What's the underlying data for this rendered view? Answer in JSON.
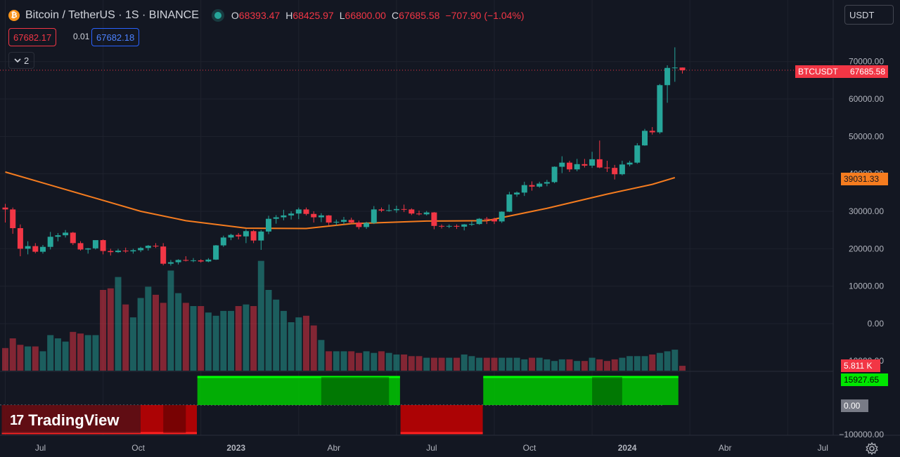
{
  "header": {
    "logo_glyph": "₿",
    "symbol_title": "Bitcoin / TetherUS · 1S · BINANCE",
    "ohlc": [
      {
        "key": "O",
        "value": "68393.47"
      },
      {
        "key": "H",
        "value": "68425.97"
      },
      {
        "key": "L",
        "value": "66800.00"
      },
      {
        "key": "C",
        "value": "67685.58"
      }
    ],
    "change": "−707.90 (−1.04%)",
    "market_status_color": "#26a69a"
  },
  "trade": {
    "sell_price": "67682.17",
    "spread": "0.01",
    "buy_price": "67682.18"
  },
  "indicators_collapse": {
    "icon": "chevron-down-icon",
    "count": "2"
  },
  "currency_select": {
    "value": "USDT"
  },
  "price_scale": {
    "ticks": [
      "70000.00",
      "60000.00",
      "50000.00",
      "40000.00",
      "30000.00",
      "20000.00",
      "10000.00",
      "0.00",
      "−10000.00",
      "−100000.00"
    ],
    "symbol_label": "BTCUSDT",
    "last_price": "67685.58",
    "ma_value": "39031.33",
    "volume_value": "5.811 K",
    "oscillator_value": "15927.65",
    "zero_value": "0.00"
  },
  "time_axis": {
    "labels": [
      {
        "text": "Jul",
        "week": 0,
        "bold": false
      },
      {
        "text": "Oct",
        "week": 13,
        "bold": false
      },
      {
        "text": "2023",
        "week": 26,
        "bold": true
      },
      {
        "text": "Abr",
        "week": 39,
        "bold": false
      },
      {
        "text": "Jul",
        "week": 52,
        "bold": false
      },
      {
        "text": "Oct",
        "week": 65,
        "bold": false
      },
      {
        "text": "2024",
        "week": 78,
        "bold": true
      },
      {
        "text": "Abr",
        "week": 91,
        "bold": false
      },
      {
        "text": "Jul",
        "week": 104,
        "bold": false
      }
    ]
  },
  "brand": {
    "name": "TradingView",
    "mark": "17"
  },
  "colors": {
    "up": "#26a69a",
    "down": "#f23645",
    "ma": "#f57c1f",
    "osc_up": "#00c800",
    "osc_down": "#c80000",
    "background": "#131722"
  },
  "chart_data": {
    "type": "candlestick",
    "interval": "1 week",
    "y_range": [
      -100000,
      75000
    ],
    "candles": [
      [
        null,
        31000,
        32000,
        27000,
        30500
      ],
      [
        null,
        30500,
        31000,
        24000,
        25500
      ],
      [
        null,
        25500,
        26500,
        18000,
        20000
      ],
      [
        null,
        20000,
        22000,
        18500,
        20700
      ],
      [
        null,
        20700,
        21500,
        18800,
        19200
      ],
      [
        null,
        19200,
        21000,
        18700,
        20500
      ],
      [
        null,
        20500,
        24500,
        19800,
        23200
      ],
      [
        null,
        23200,
        24200,
        22000,
        23600
      ],
      [
        null,
        23600,
        25000,
        23000,
        24300
      ],
      [
        null,
        24300,
        24500,
        21000,
        21500
      ],
      [
        null,
        21500,
        22000,
        19500,
        19800
      ],
      [
        null,
        19800,
        20200,
        18700,
        20100
      ],
      [
        null,
        20100,
        21000,
        19800,
        22300
      ],
      [
        null,
        22300,
        22500,
        18500,
        19400
      ],
      [
        null,
        19400,
        20000,
        18200,
        19100
      ],
      [
        null,
        19100,
        20000,
        18900,
        19500
      ],
      [
        null,
        19500,
        20300,
        18900,
        19300
      ],
      [
        null,
        19300,
        20000,
        18700,
        19600
      ],
      [
        null,
        19600,
        20500,
        19100,
        20200
      ],
      [
        null,
        20200,
        21000,
        19500,
        20800
      ],
      [
        null,
        20800,
        21500,
        20200,
        20600
      ],
      [
        null,
        20600,
        21500,
        15600,
        16000
      ],
      [
        null,
        16000,
        17000,
        15500,
        16400
      ],
      [
        null,
        16400,
        17200,
        15800,
        17000
      ],
      [
        null,
        17000,
        18000,
        16600,
        16800
      ],
      [
        null,
        16800,
        17500,
        16400,
        16900
      ],
      [
        null,
        16900,
        17200,
        16300,
        16600
      ],
      [
        null,
        16600,
        17500,
        16400,
        17100
      ],
      [
        null,
        17100,
        21000,
        17000,
        20900
      ],
      [
        null,
        20900,
        23500,
        20500,
        23000
      ],
      [
        null,
        23000,
        24000,
        22300,
        23700
      ],
      [
        null,
        23700,
        24200,
        22500,
        23300
      ],
      [
        null,
        23300,
        25200,
        21500,
        24700
      ],
      [
        null,
        24700,
        25000,
        21500,
        22200
      ],
      [
        null,
        22200,
        25000,
        19700,
        24600
      ],
      [
        null,
        24600,
        28800,
        23900,
        28000
      ],
      [
        null,
        28000,
        29000,
        26700,
        28400
      ],
      [
        null,
        28400,
        30400,
        27600,
        28900
      ],
      [
        null,
        28900,
        30000,
        27800,
        29400
      ],
      [
        null,
        29400,
        31000,
        27900,
        30500
      ],
      [
        null,
        30500,
        31000,
        28900,
        29300
      ],
      [
        null,
        29300,
        30000,
        27000,
        28400
      ],
      [
        null,
        28400,
        29500,
        27100,
        28900
      ],
      [
        null,
        28900,
        29000,
        26300,
        27000
      ],
      [
        null,
        27000,
        27800,
        26200,
        27200
      ],
      [
        null,
        27200,
        28500,
        26500,
        27700
      ],
      [
        null,
        27700,
        28300,
        26700,
        27000
      ],
      [
        null,
        27000,
        27500,
        25200,
        25800
      ],
      [
        null,
        25800,
        27200,
        25300,
        26900
      ],
      [
        null,
        26900,
        31400,
        26600,
        30500
      ],
      [
        null,
        30500,
        31000,
        29800,
        30200
      ],
      [
        null,
        30200,
        31800,
        29900,
        30300
      ],
      [
        null,
        30300,
        31500,
        29600,
        30600
      ],
      [
        null,
        30600,
        31800,
        29800,
        30500
      ],
      [
        null,
        30500,
        30800,
        29000,
        29400
      ],
      [
        null,
        29400,
        30200,
        28900,
        29200
      ],
      [
        null,
        29200,
        30100,
        28900,
        29700
      ],
      [
        null,
        29700,
        29800,
        25200,
        26100
      ],
      [
        null,
        26100,
        26500,
        25400,
        26000
      ],
      [
        null,
        26000,
        26500,
        25500,
        26100
      ],
      [
        null,
        26100,
        26500,
        25300,
        25900
      ],
      [
        null,
        25900,
        26600,
        24900,
        26500
      ],
      [
        null,
        26500,
        27400,
        26100,
        26600
      ],
      [
        null,
        26600,
        28200,
        26400,
        28000
      ],
      [
        null,
        28000,
        28500,
        26600,
        27900
      ],
      [
        null,
        27900,
        28300,
        26600,
        27300
      ],
      [
        null,
        27300,
        30000,
        26900,
        29900
      ],
      [
        null,
        29900,
        35200,
        29800,
        34500
      ],
      [
        null,
        34500,
        35300,
        33900,
        35000
      ],
      [
        null,
        35000,
        37900,
        34100,
        37000
      ],
      [
        null,
        37000,
        38000,
        35500,
        36600
      ],
      [
        null,
        36600,
        37900,
        36300,
        37400
      ],
      [
        null,
        37400,
        38400,
        36700,
        37800
      ],
      [
        null,
        37800,
        42000,
        37500,
        41900
      ],
      [
        null,
        41900,
        44700,
        40200,
        43000
      ],
      [
        null,
        43000,
        43500,
        40500,
        41200
      ],
      [
        null,
        41200,
        44000,
        40700,
        42600
      ],
      [
        null,
        42600,
        44000,
        41700,
        42200
      ],
      [
        null,
        42200,
        45900,
        41600,
        43900
      ],
      [
        null,
        43900,
        48900,
        41500,
        41700
      ],
      [
        null,
        41700,
        43500,
        40500,
        41600
      ],
      [
        null,
        41600,
        42400,
        38500,
        39900
      ],
      [
        null,
        39900,
        43500,
        39600,
        42500
      ],
      [
        null,
        42500,
        43500,
        42000,
        43000
      ],
      [
        null,
        43000,
        48200,
        42700,
        47600
      ],
      [
        null,
        47600,
        52000,
        47500,
        51500
      ],
      [
        null,
        51500,
        52500,
        50500,
        51100
      ],
      [
        null,
        51100,
        64000,
        50700,
        63700
      ],
      [
        null,
        63700,
        69000,
        59000,
        68300
      ],
      [
        null,
        68300,
        73800,
        64600,
        68400
      ],
      [
        null,
        68400,
        68430,
        66800,
        67686
      ]
    ],
    "candle_fields": [
      "week_index_auto",
      "open",
      "high",
      "low",
      "close"
    ],
    "moving_average": [
      [
        0,
        40500
      ],
      [
        6,
        37000
      ],
      [
        12,
        33500
      ],
      [
        18,
        30000
      ],
      [
        24,
        27500
      ],
      [
        32,
        25500
      ],
      [
        40,
        25400
      ],
      [
        46,
        26700
      ],
      [
        56,
        27400
      ],
      [
        64,
        27500
      ],
      [
        72,
        30800
      ],
      [
        80,
        34600
      ],
      [
        86,
        37200
      ],
      [
        89,
        39000
      ]
    ],
    "volume": [
      14,
      20,
      16,
      15,
      15,
      12,
      22,
      20,
      18,
      24,
      23,
      22,
      22,
      50,
      51,
      58,
      41,
      33,
      45,
      52,
      47,
      42,
      62,
      48,
      42,
      40,
      40,
      36,
      34,
      37,
      37,
      40,
      41,
      40,
      68,
      50,
      44,
      37,
      30,
      33,
      34,
      28,
      19,
      12,
      12,
      12,
      12,
      11,
      12,
      11,
      12,
      11,
      10,
      10,
      9,
      9,
      8,
      8,
      8,
      8,
      8,
      10,
      9,
      8,
      8,
      8,
      8,
      8,
      8,
      7,
      8,
      8,
      7,
      6,
      7,
      7,
      6,
      6,
      8,
      7,
      6,
      7,
      8,
      9,
      9,
      9,
      10,
      11,
      12,
      13,
      3
    ],
    "oscillator": {
      "baseline": 0,
      "segments": [
        {
          "from": 0,
          "to": 25,
          "sign": "down",
          "level": -28000
        },
        {
          "from": 26,
          "to": 52,
          "sign": "up",
          "level": 30000
        },
        {
          "from": 53,
          "to": 63,
          "sign": "down",
          "level": -28000
        },
        {
          "from": 64,
          "to": 89,
          "sign": "up",
          "level": 30000
        }
      ],
      "value": 15927.65
    }
  }
}
